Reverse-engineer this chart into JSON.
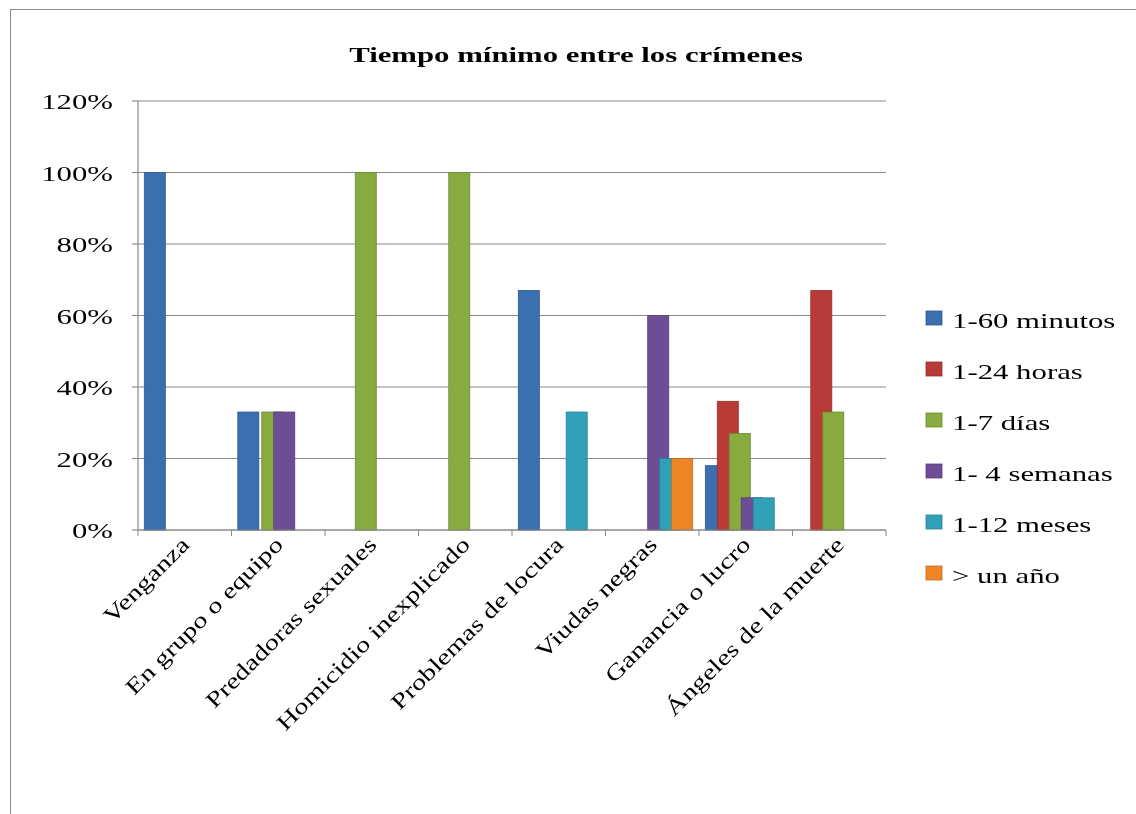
{
  "chart_data": {
    "type": "bar",
    "title": "Tiempo mínimo entre los crímenes",
    "categories": [
      "Venganza",
      "En grupo o equipo",
      "Predadoras sexuales",
      "Homicidio inexplicado",
      "Problemas de locura",
      "Viudas negras",
      "Ganancia o lucro",
      "Ángeles de la muerte"
    ],
    "series": [
      {
        "name": "1-60 minutos",
        "color": "#3a6fb0",
        "values": [
          100,
          33,
          null,
          null,
          67,
          null,
          18,
          null
        ]
      },
      {
        "name": "1-24 horas",
        "color": "#b93b37",
        "values": [
          null,
          null,
          null,
          null,
          null,
          null,
          36,
          67
        ]
      },
      {
        "name": "1-7 días",
        "color": "#88ab3f",
        "values": [
          null,
          33,
          100,
          100,
          null,
          null,
          27,
          33
        ]
      },
      {
        "name": "1- 4 semanas",
        "color": "#6e4d97",
        "values": [
          null,
          33,
          null,
          null,
          null,
          60,
          9,
          null
        ]
      },
      {
        "name": "1-12 meses",
        "color": "#31a0b9",
        "values": [
          null,
          null,
          null,
          null,
          33,
          20,
          9,
          null
        ]
      },
      {
        "name": "> un año",
        "color": "#ef8526",
        "values": [
          null,
          null,
          null,
          null,
          null,
          20,
          null,
          null
        ]
      }
    ],
    "ylim": [
      0,
      120
    ],
    "yticks": [
      {
        "value": 0,
        "label": "0%"
      },
      {
        "value": 20,
        "label": "20%"
      },
      {
        "value": 40,
        "label": "40%"
      },
      {
        "value": 60,
        "label": "60%"
      },
      {
        "value": 80,
        "label": "80%"
      },
      {
        "value": 100,
        "label": "100%"
      },
      {
        "value": 120,
        "label": "120%"
      }
    ],
    "grid": "y",
    "legend": "right"
  }
}
